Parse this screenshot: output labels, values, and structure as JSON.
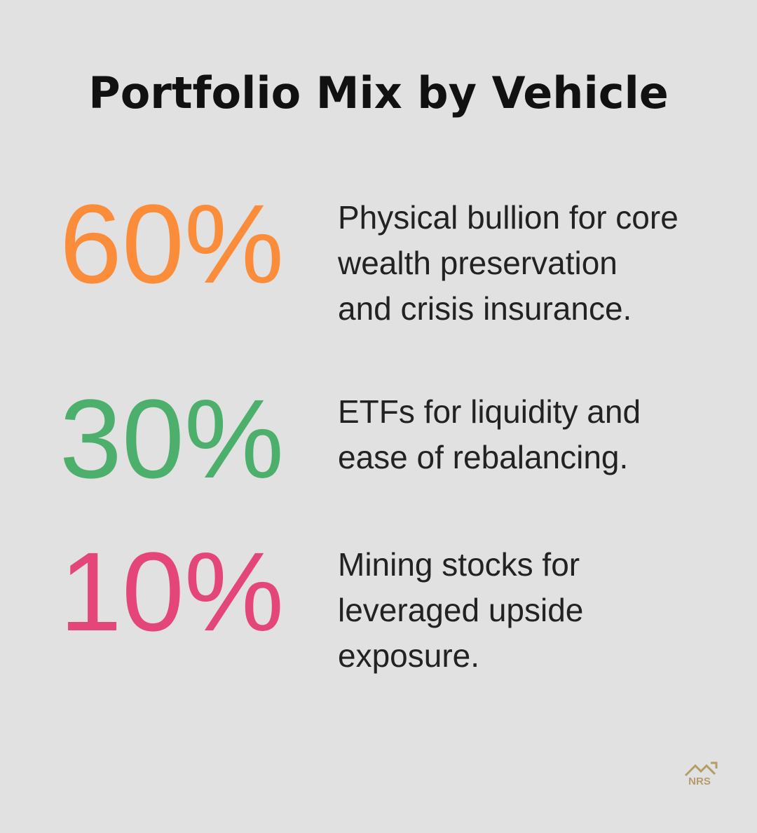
{
  "title": "Portfolio Mix by Vehicle",
  "items": [
    {
      "figure": "60%",
      "color": "#fb8c3a",
      "lines": [
        "Physical bullion for core",
        "wealth preservation",
        "and crisis insurance."
      ]
    },
    {
      "figure": "30%",
      "color": "#4caf6c",
      "lines": [
        "ETFs for liquidity and",
        "ease of rebalancing."
      ]
    },
    {
      "figure": "10%",
      "color": "#e4467a",
      "lines": [
        "Mining stocks for",
        "leveraged upside",
        "exposure."
      ]
    }
  ],
  "logo": {
    "text": "NRS"
  }
}
